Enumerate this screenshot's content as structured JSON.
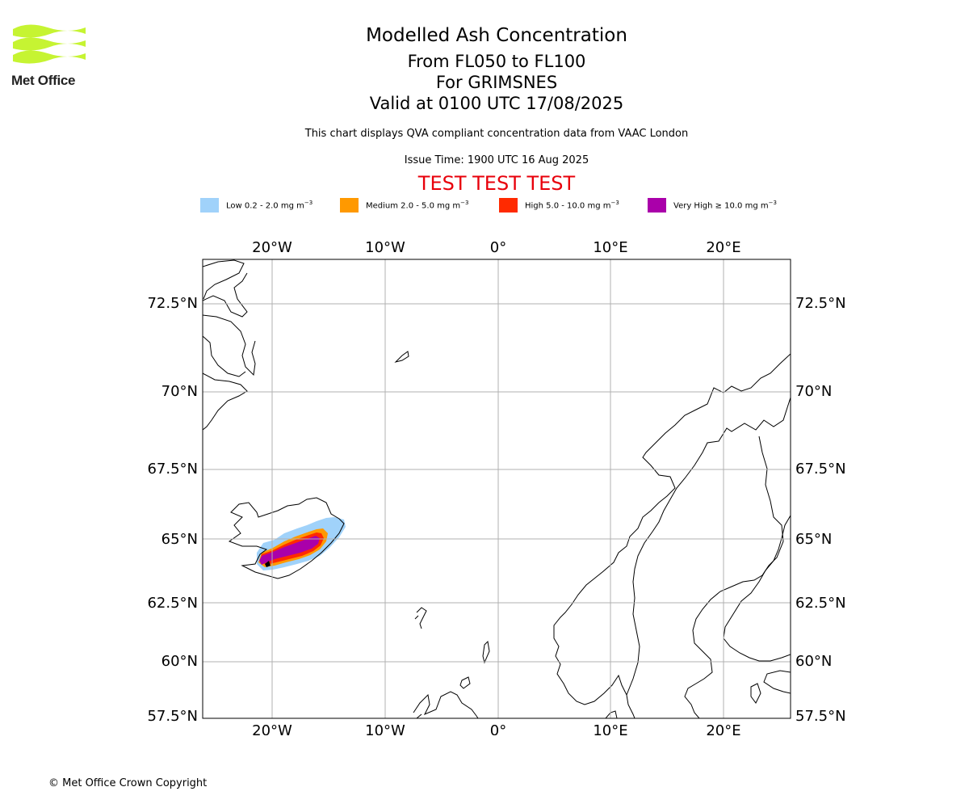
{
  "header": {
    "logo_text": "Met Office",
    "title": "Modelled Ash Concentration",
    "levels": "From FL050 to FL100",
    "volcano": "For GRIMSNES",
    "valid": "Valid at 0100 UTC 17/08/2025",
    "subtitle": "This chart displays QVA compliant concentration data from VAAC London",
    "issue_time": "Issue Time: 1900 UTC 16 Aug 2025",
    "test_banner": "TEST TEST TEST"
  },
  "legend": [
    {
      "label": "Low 0.2 - 2.0 mg m",
      "sup": "−3",
      "color": "#a0d2fa"
    },
    {
      "label": "Medium 2.0 - 5.0 mg m",
      "sup": "−3",
      "color": "#ff9900"
    },
    {
      "label": "High 5.0 - 10.0 mg m",
      "sup": "−3",
      "color": "#ff2a00"
    },
    {
      "label": "Very High  ≥  10.0 mg m",
      "sup": "−3",
      "color": "#aa00aa"
    }
  ],
  "map": {
    "lon_ticks": [
      "20°W",
      "10°W",
      "0°",
      "10°E",
      "20°E"
    ],
    "lat_ticks": [
      "72.5°N",
      "70°N",
      "67.5°N",
      "65°N",
      "62.5°N",
      "60°N",
      "57.5°N"
    ],
    "grid": true,
    "extent": {
      "lon": [
        -26,
        26
      ],
      "lat": [
        57.5,
        73.5
      ]
    }
  },
  "footer": {
    "copyright": "© Met Office Crown Copyright"
  }
}
